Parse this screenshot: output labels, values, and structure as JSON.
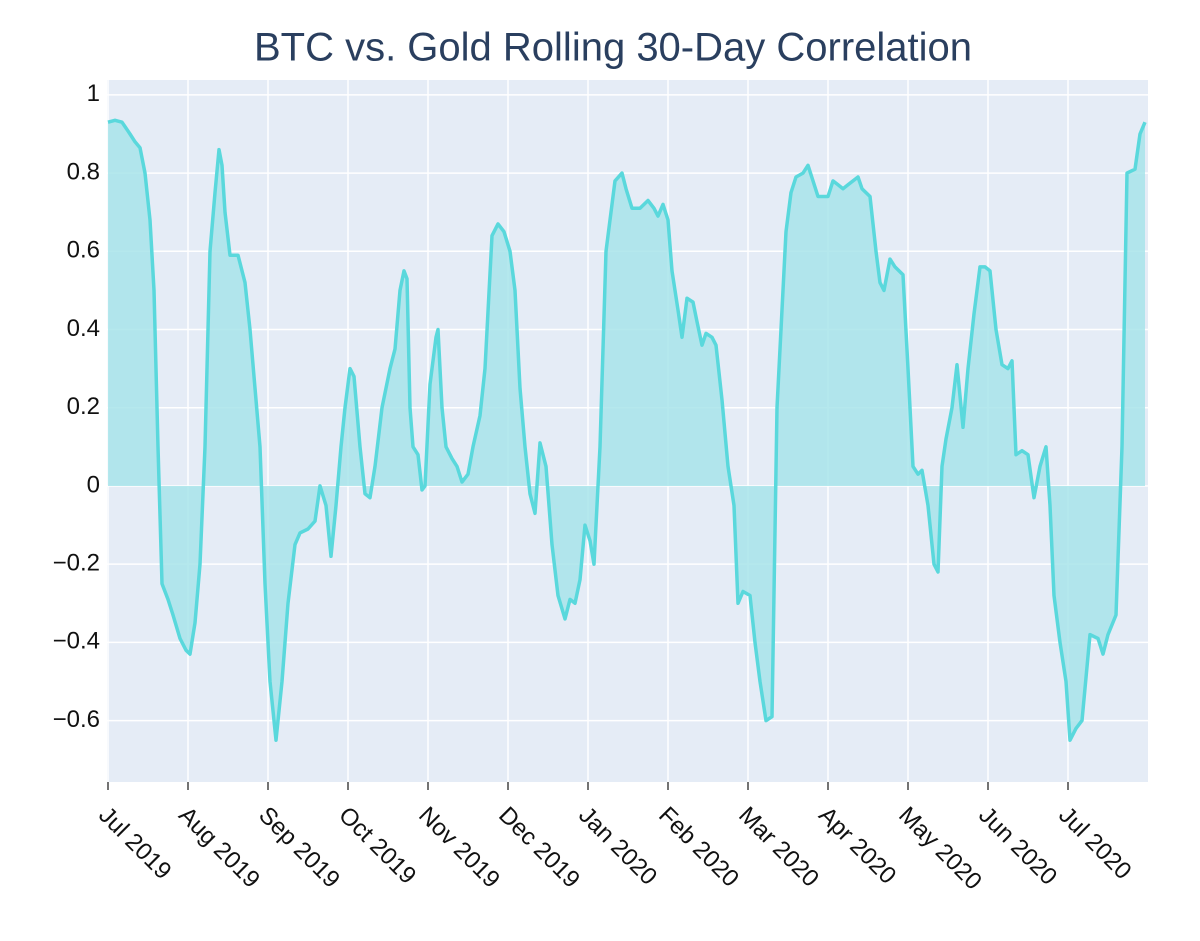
{
  "chart_data": {
    "type": "area",
    "title": "BTC vs. Gold Rolling 30-Day Correlation",
    "color": "#5ad8dc",
    "fill_color": "#a8e4ea",
    "grid": true,
    "xlim": [
      0,
      13
    ],
    "ylim": [
      -0.757,
      1.038
    ],
    "xticks": [
      {
        "value": 0,
        "label": "Jul 2019"
      },
      {
        "value": 1,
        "label": "Aug 2019"
      },
      {
        "value": 2,
        "label": "Sep 2019"
      },
      {
        "value": 3,
        "label": "Oct 2019"
      },
      {
        "value": 4,
        "label": "Nov 2019"
      },
      {
        "value": 5,
        "label": "Dec 2019"
      },
      {
        "value": 6,
        "label": "Jan 2020"
      },
      {
        "value": 7,
        "label": "Feb 2020"
      },
      {
        "value": 8,
        "label": "Mar 2020"
      },
      {
        "value": 9,
        "label": "Apr 2020"
      },
      {
        "value": 10,
        "label": "May 2020"
      },
      {
        "value": 11,
        "label": "Jun 2020"
      },
      {
        "value": 12,
        "label": "Jul 2020"
      }
    ],
    "yticks": [
      {
        "value": -0.6,
        "label": "−0.6"
      },
      {
        "value": -0.4,
        "label": "−0.4"
      },
      {
        "value": -0.2,
        "label": "−0.2"
      },
      0,
      0.2,
      0.4,
      0.6,
      0.8,
      1
    ],
    "x": [
      0,
      0.088,
      0.175,
      0.275,
      0.338,
      0.4,
      0.463,
      0.525,
      0.575,
      0.625,
      0.675,
      0.75,
      0.813,
      0.9,
      0.975,
      1.025,
      1.088,
      1.15,
      1.213,
      1.275,
      1.338,
      1.388,
      1.425,
      1.463,
      1.525,
      1.625,
      1.713,
      1.775,
      1.838,
      1.9,
      1.963,
      2.025,
      2.1,
      2.175,
      2.25,
      2.338,
      2.4,
      2.5,
      2.588,
      2.65,
      2.725,
      2.788,
      2.85,
      2.913,
      2.963,
      3.025,
      3.075,
      3.15,
      3.213,
      3.275,
      3.338,
      3.425,
      3.525,
      3.588,
      3.65,
      3.7,
      3.738,
      3.775,
      3.813,
      3.875,
      3.925,
      3.963,
      4.025,
      4.1,
      4.125,
      4.175,
      4.225,
      4.3,
      4.363,
      4.425,
      4.5,
      4.563,
      4.65,
      4.713,
      4.8,
      4.875,
      4.95,
      5.025,
      5.088,
      5.15,
      5.213,
      5.275,
      5.338,
      5.4,
      5.475,
      5.55,
      5.625,
      5.713,
      5.775,
      5.838,
      5.9,
      5.963,
      6.025,
      6.075,
      6.15,
      6.225,
      6.338,
      6.425,
      6.475,
      6.55,
      6.65,
      6.75,
      6.825,
      6.875,
      6.938,
      7.0,
      7.05,
      7.125,
      7.175,
      7.238,
      7.313,
      7.363,
      7.425,
      7.475,
      7.55,
      7.6,
      7.675,
      7.75,
      7.825,
      7.875,
      7.938,
      8.025,
      8.088,
      8.15,
      8.225,
      8.3,
      8.363,
      8.475,
      8.538,
      8.6,
      8.688,
      8.75,
      8.813,
      8.875,
      9.0,
      9.063,
      9.125,
      9.188,
      9.25,
      9.313,
      9.375,
      9.425,
      9.525,
      9.6,
      9.65,
      9.7,
      9.775,
      9.838,
      9.938,
      10.0,
      10.063,
      10.125,
      10.175,
      10.25,
      10.325,
      10.375,
      10.425,
      10.475,
      10.55,
      10.613,
      10.688,
      10.75,
      10.825,
      10.9,
      10.963,
      11.025,
      11.1,
      11.175,
      11.25,
      11.3,
      11.35,
      11.425,
      11.5,
      11.575,
      11.65,
      11.725,
      11.775,
      11.825,
      11.9,
      11.975,
      12.025,
      12.1,
      12.175,
      12.275,
      12.375,
      12.438,
      12.5,
      12.6,
      12.675,
      12.738,
      12.838,
      12.9,
      12.963
    ],
    "values": [
      0.93,
      0.935,
      0.93,
      0.9,
      0.88,
      0.865,
      0.8,
      0.68,
      0.5,
      0.1,
      -0.25,
      -0.29,
      -0.33,
      -0.39,
      -0.42,
      -0.43,
      -0.35,
      -0.2,
      0.1,
      0.6,
      0.75,
      0.86,
      0.82,
      0.7,
      0.59,
      0.59,
      0.52,
      0.4,
      0.25,
      0.1,
      -0.25,
      -0.5,
      -0.65,
      -0.5,
      -0.3,
      -0.15,
      -0.12,
      -0.11,
      -0.09,
      0.0,
      -0.05,
      -0.18,
      -0.05,
      0.1,
      0.2,
      0.3,
      0.28,
      0.1,
      -0.02,
      -0.03,
      0.05,
      0.2,
      0.3,
      0.35,
      0.5,
      0.55,
      0.53,
      0.2,
      0.1,
      0.08,
      -0.01,
      0.0,
      0.26,
      0.38,
      0.4,
      0.2,
      0.1,
      0.07,
      0.05,
      0.01,
      0.03,
      0.1,
      0.18,
      0.3,
      0.64,
      0.67,
      0.65,
      0.6,
      0.5,
      0.25,
      0.1,
      -0.02,
      -0.07,
      0.11,
      0.05,
      -0.15,
      -0.28,
      -0.34,
      -0.29,
      -0.3,
      -0.24,
      -0.1,
      -0.14,
      -0.2,
      0.1,
      0.6,
      0.78,
      0.8,
      0.76,
      0.71,
      0.71,
      0.73,
      0.71,
      0.69,
      0.72,
      0.68,
      0.55,
      0.45,
      0.38,
      0.48,
      0.47,
      0.42,
      0.36,
      0.39,
      0.38,
      0.36,
      0.22,
      0.05,
      -0.05,
      -0.3,
      -0.27,
      -0.28,
      -0.4,
      -0.5,
      -0.6,
      -0.59,
      0.2,
      0.65,
      0.75,
      0.79,
      0.8,
      0.82,
      0.78,
      0.74,
      0.74,
      0.78,
      0.77,
      0.76,
      0.77,
      0.78,
      0.79,
      0.76,
      0.74,
      0.6,
      0.52,
      0.5,
      0.58,
      0.56,
      0.54,
      0.3,
      0.05,
      0.03,
      0.04,
      -0.05,
      -0.2,
      -0.22,
      0.05,
      0.12,
      0.2,
      0.31,
      0.15,
      0.3,
      0.44,
      0.56,
      0.56,
      0.55,
      0.4,
      0.31,
      0.3,
      0.32,
      0.08,
      0.09,
      0.08,
      -0.03,
      0.05,
      0.1,
      -0.05,
      -0.28,
      -0.4,
      -0.5,
      -0.65,
      -0.62,
      -0.6,
      -0.38,
      -0.39,
      -0.43,
      -0.38,
      -0.33,
      0.1,
      0.8,
      0.81,
      0.9,
      0.93
    ]
  }
}
